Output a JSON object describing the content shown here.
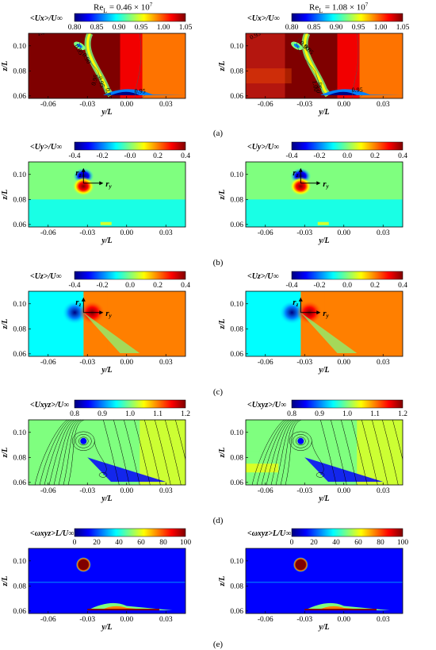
{
  "column_headers": [
    {
      "base": "Re",
      "sub": "L",
      "rest": " = 0.46 × 10",
      "exp": "7"
    },
    {
      "base": "Re",
      "sub": "L",
      "rest": " = 1.08 × 10",
      "exp": "7"
    }
  ],
  "panel_labels": [
    "(a)",
    "(b)",
    "(c)",
    "(d)",
    "(e)"
  ],
  "colormap": [
    "#00007f",
    "#0000ff",
    "#007fff",
    "#00ffff",
    "#7fff7f",
    "#ffff00",
    "#ff7f00",
    "#ff0000",
    "#7f0000"
  ],
  "chart_data": [
    {
      "type": "heatmap",
      "row": "a",
      "col": 0,
      "colorbar_title": "<Ux>/U∞",
      "clim": [
        0.8,
        1.05
      ],
      "cbar_ticks": [
        "0.80",
        "0.85",
        "0.90",
        "0.95",
        "1.00",
        "1.05"
      ],
      "xlabel": "y/L",
      "ylabel": "z/L",
      "xticks": [
        "-0.06",
        "-0.03",
        "0.00",
        "0.03"
      ],
      "yticks": [
        "0.06",
        "0.08",
        "0.10"
      ],
      "xlim": [
        -0.075,
        0.045
      ],
      "ylim": [
        0.058,
        0.11
      ],
      "contour_labels": [
        "1.00",
        "0.95",
        "0.90",
        "0.95",
        "0.95",
        "0.95",
        "0.95"
      ]
    },
    {
      "type": "heatmap",
      "row": "a",
      "col": 1,
      "colorbar_title": "<Ux>/U∞",
      "clim": [
        0.8,
        1.05
      ],
      "cbar_ticks": [
        "0.80",
        "0.85",
        "0.90",
        "0.95",
        "1.00",
        "1.05"
      ],
      "xlabel": "y/L",
      "ylabel": "z/L",
      "xticks": [
        "-0.06",
        "-0.03",
        "0.00",
        "0.03"
      ],
      "yticks": [
        "0.06",
        "0.08",
        "0.10"
      ],
      "xlim": [
        -0.075,
        0.045
      ],
      "ylim": [
        0.058,
        0.11
      ],
      "contour_labels": [
        "0.95",
        "0.90",
        "0.95",
        "1.00",
        "0.95",
        "0.95"
      ]
    },
    {
      "type": "heatmap",
      "row": "b",
      "col": 0,
      "colorbar_title": "<Uy>/U∞",
      "clim": [
        -0.4,
        0.4
      ],
      "cbar_ticks": [
        "-0.4",
        "-0.2",
        "-0.0",
        "0.2",
        "0.4"
      ],
      "xlabel": "y/L",
      "ylabel": "z/L",
      "xticks": [
        "-0.06",
        "-0.03",
        "0.00",
        "0.03"
      ],
      "yticks": [
        "0.06",
        "0.08",
        "0.10"
      ],
      "xlim": [
        -0.075,
        0.045
      ],
      "ylim": [
        0.058,
        0.11
      ],
      "annotations": [
        "rz",
        "ry"
      ]
    },
    {
      "type": "heatmap",
      "row": "b",
      "col": 1,
      "colorbar_title": "<Uy>/U∞",
      "clim": [
        -0.4,
        0.4
      ],
      "cbar_ticks": [
        "-0.4",
        "-0.2",
        "0.0",
        "0.2",
        "0.4"
      ],
      "xlabel": "y/L",
      "ylabel": "z/L",
      "xticks": [
        "-0.06",
        "-0.03",
        "0.00",
        "0.03"
      ],
      "yticks": [
        "0.06",
        "0.08",
        "0.10"
      ],
      "xlim": [
        -0.075,
        0.045
      ],
      "ylim": [
        0.058,
        0.11
      ],
      "annotations": [
        "rz",
        "ry"
      ]
    },
    {
      "type": "heatmap",
      "row": "c",
      "col": 0,
      "colorbar_title": "<Uz>/U∞",
      "clim": [
        -0.4,
        0.4
      ],
      "cbar_ticks": [
        "-0.4",
        "-0.2",
        "0.0",
        "0.2",
        "0.4"
      ],
      "xlabel": "y/L",
      "ylabel": "z/L",
      "xticks": [
        "-0.06",
        "-0.03",
        "0.00",
        "0.03"
      ],
      "yticks": [
        "0.06",
        "0.08",
        "0.10"
      ],
      "xlim": [
        -0.075,
        0.045
      ],
      "ylim": [
        0.058,
        0.11
      ],
      "annotations": [
        "rz",
        "ry"
      ]
    },
    {
      "type": "heatmap",
      "row": "c",
      "col": 1,
      "colorbar_title": "<Uz>/U∞",
      "clim": [
        -0.4,
        0.4
      ],
      "cbar_ticks": [
        "-0.4",
        "-0.2",
        "0.0",
        "0.2",
        "0.4"
      ],
      "xlabel": "y/L",
      "ylabel": "z/L",
      "xticks": [
        "-0.06",
        "-0.03",
        "0.00",
        "0.03"
      ],
      "yticks": [
        "0.06",
        "0.08",
        "0.10"
      ],
      "xlim": [
        -0.075,
        0.045
      ],
      "ylim": [
        0.058,
        0.11
      ],
      "annotations": [
        "rz",
        "ry"
      ]
    },
    {
      "type": "heatmap",
      "row": "d",
      "col": 0,
      "colorbar_title": "<Uxyz>/U∞",
      "clim": [
        0.8,
        1.2
      ],
      "cbar_ticks": [
        "0.8",
        "0.9",
        "1.0",
        "1.1",
        "1.2"
      ],
      "xlabel": "y/L",
      "ylabel": "z/L",
      "xticks": [
        "-0.06",
        "-0.03",
        "0.00",
        "0.03"
      ],
      "yticks": [
        "0.06",
        "0.08",
        "0.10"
      ],
      "xlim": [
        -0.075,
        0.045
      ],
      "ylim": [
        0.058,
        0.11
      ],
      "streamlines": true
    },
    {
      "type": "heatmap",
      "row": "d",
      "col": 1,
      "colorbar_title": "<Uxyz>/U∞",
      "clim": [
        0.8,
        1.2
      ],
      "cbar_ticks": [
        "0.8",
        "0.9",
        "1.0",
        "1.1",
        "1.2"
      ],
      "xlabel": "y/L",
      "ylabel": "z/L",
      "xticks": [
        "-0.06",
        "-0.03",
        "0.00",
        "0.03"
      ],
      "yticks": [
        "0.06",
        "0.08",
        "0.10"
      ],
      "xlim": [
        -0.075,
        0.045
      ],
      "ylim": [
        0.058,
        0.11
      ],
      "streamlines": true
    },
    {
      "type": "heatmap",
      "row": "e",
      "col": 0,
      "colorbar_title": "<ωxyz>L/U∞",
      "clim": [
        0,
        100
      ],
      "cbar_ticks": [
        "0",
        "20",
        "40",
        "60",
        "80",
        "100"
      ],
      "xlabel": "y/L",
      "ylabel": "z/L",
      "xticks": [
        "-0.06",
        "-0.03",
        "0.00",
        "0.03"
      ],
      "yticks": [
        "0.06",
        "0.08",
        "0.10"
      ],
      "xlim": [
        -0.075,
        0.045
      ],
      "ylim": [
        0.058,
        0.11
      ]
    },
    {
      "type": "heatmap",
      "row": "e",
      "col": 1,
      "colorbar_title": "<ωxyz>L/U∞",
      "clim": [
        0,
        100
      ],
      "cbar_ticks": [
        "0",
        "20",
        "40",
        "60",
        "80",
        "100"
      ],
      "xlabel": "y/L",
      "ylabel": "z/L",
      "xticks": [
        "-0.06",
        "-0.03",
        "0.00",
        "0.03"
      ],
      "yticks": [
        "0.06",
        "0.08",
        "0.10"
      ],
      "xlim": [
        -0.075,
        0.045
      ],
      "ylim": [
        0.058,
        0.11
      ]
    }
  ]
}
